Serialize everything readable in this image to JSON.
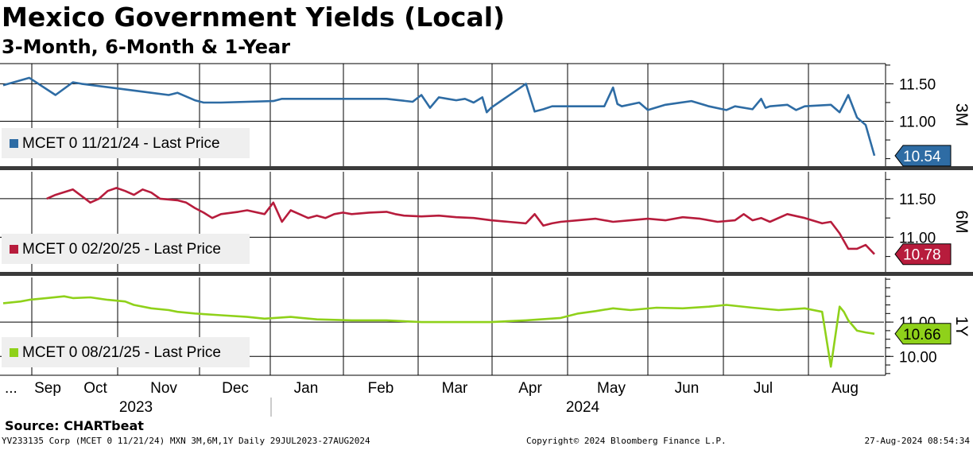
{
  "header": {
    "title": "Mexico Government Yields (Local)",
    "subtitle": "3-Month, 6-Month & 1-Year"
  },
  "footer": {
    "source": "Source: CHARTbeat",
    "left": "YV233135 Corp (MCET 0 11/21/24) MXN 3M,6M,1Y  Daily 29JUL2023-27AUG2024",
    "middle": "Copyright© 2024 Bloomberg Finance L.P.",
    "right": "27-Aug-2024 08:54:34"
  },
  "colors": {
    "three_month": "#2e6ca4",
    "six_month": "#b71c3c",
    "one_year": "#8fd11a",
    "grid": "#000000",
    "separator": "#3a3a3a"
  },
  "chart_data": {
    "type": "line",
    "x_axis": {
      "leading_label": "...",
      "month_labels": [
        "Sep",
        "Oct",
        "Nov",
        "Dec",
        "Jan",
        "Feb",
        "Mar",
        "Apr",
        "May",
        "Jun",
        "Jul",
        "Aug"
      ],
      "year_labels": [
        "2023",
        "2024"
      ]
    },
    "panels": [
      {
        "id": "3M",
        "axis_title": "3M",
        "series_name": "MCET 0 11/21/24 - Last Price",
        "last_value": 10.54,
        "last_label": "10.54",
        "y_range": [
          10.4,
          11.77
        ],
        "y_ticks": [
          11.0,
          11.5
        ],
        "y_tick_labels": [
          "11.00",
          "11.50"
        ],
        "t": [
          0,
          0.03,
          0.06,
          0.08,
          0.09,
          0.13,
          0.17,
          0.19,
          0.2,
          0.22,
          0.23,
          0.25,
          0.31,
          0.32,
          0.43,
          0.44,
          0.47,
          0.48,
          0.49,
          0.5,
          0.51,
          0.52,
          0.53,
          0.54,
          0.55,
          0.555,
          0.56,
          0.565,
          0.57,
          0.6,
          0.61,
          0.62,
          0.63,
          0.66,
          0.69,
          0.7,
          0.705,
          0.71,
          0.73,
          0.74,
          0.76,
          0.79,
          0.81,
          0.83,
          0.84,
          0.86,
          0.87,
          0.875,
          0.88,
          0.9,
          0.91,
          0.92,
          0.95,
          0.96,
          0.97,
          0.98,
          0.99,
          1.0
        ],
        "values": [
          11.48,
          11.58,
          11.35,
          11.52,
          11.5,
          11.44,
          11.38,
          11.35,
          11.38,
          11.28,
          11.25,
          11.25,
          11.27,
          11.3,
          11.3,
          11.3,
          11.26,
          11.35,
          11.18,
          11.32,
          11.3,
          11.28,
          11.3,
          11.25,
          11.32,
          11.12,
          11.18,
          11.22,
          11.26,
          11.5,
          11.13,
          11.16,
          11.2,
          11.2,
          11.2,
          11.45,
          11.23,
          11.2,
          11.25,
          11.15,
          11.22,
          11.27,
          11.2,
          11.15,
          11.2,
          11.16,
          11.3,
          11.18,
          11.2,
          11.22,
          11.15,
          11.2,
          11.22,
          11.12,
          11.35,
          11.05,
          10.95,
          10.54
        ]
      },
      {
        "id": "6M",
        "axis_title": "6M",
        "series_name": "MCET 0 02/20/25 - Last Price",
        "last_value": 10.78,
        "last_label": "10.78",
        "y_range": [
          10.55,
          11.85
        ],
        "y_ticks": [
          11.0,
          11.5
        ],
        "y_tick_labels": [
          "11.00",
          "11.50"
        ],
        "t": [
          0.05,
          0.06,
          0.08,
          0.1,
          0.11,
          0.12,
          0.13,
          0.14,
          0.15,
          0.16,
          0.17,
          0.18,
          0.2,
          0.21,
          0.22,
          0.23,
          0.24,
          0.25,
          0.27,
          0.28,
          0.3,
          0.31,
          0.32,
          0.33,
          0.34,
          0.35,
          0.36,
          0.37,
          0.38,
          0.39,
          0.4,
          0.42,
          0.44,
          0.45,
          0.46,
          0.48,
          0.5,
          0.52,
          0.54,
          0.56,
          0.58,
          0.6,
          0.61,
          0.62,
          0.63,
          0.64,
          0.66,
          0.68,
          0.7,
          0.72,
          0.74,
          0.76,
          0.78,
          0.8,
          0.82,
          0.84,
          0.85,
          0.86,
          0.87,
          0.88,
          0.9,
          0.92,
          0.94,
          0.95,
          0.96,
          0.97,
          0.98,
          0.99,
          1.0
        ],
        "values": [
          11.5,
          11.55,
          11.62,
          11.45,
          11.5,
          11.6,
          11.64,
          11.6,
          11.55,
          11.62,
          11.58,
          11.5,
          11.48,
          11.45,
          11.38,
          11.32,
          11.25,
          11.3,
          11.33,
          11.35,
          11.3,
          11.45,
          11.2,
          11.35,
          11.3,
          11.25,
          11.28,
          11.25,
          11.3,
          11.32,
          11.3,
          11.32,
          11.33,
          11.3,
          11.28,
          11.27,
          11.28,
          11.26,
          11.25,
          11.22,
          11.2,
          11.18,
          11.3,
          11.15,
          11.18,
          11.2,
          11.22,
          11.24,
          11.2,
          11.22,
          11.24,
          11.22,
          11.26,
          11.24,
          11.2,
          11.22,
          11.3,
          11.22,
          11.25,
          11.2,
          11.3,
          11.25,
          11.18,
          11.2,
          11.05,
          10.85,
          10.85,
          10.9,
          10.78
        ]
      },
      {
        "id": "1Y",
        "axis_title": "1Y",
        "series_name": "MCET 0 08/21/25 - Last Price",
        "last_value": 10.66,
        "last_label": "10.66",
        "y_range": [
          9.45,
          12.3
        ],
        "y_ticks": [
          10.0,
          11.0
        ],
        "y_tick_labels": [
          "10.00",
          "11.00"
        ],
        "t": [
          0.0,
          0.02,
          0.03,
          0.05,
          0.07,
          0.08,
          0.1,
          0.12,
          0.14,
          0.15,
          0.17,
          0.19,
          0.2,
          0.22,
          0.25,
          0.28,
          0.3,
          0.33,
          0.36,
          0.4,
          0.44,
          0.48,
          0.52,
          0.56,
          0.6,
          0.64,
          0.66,
          0.68,
          0.7,
          0.72,
          0.75,
          0.78,
          0.81,
          0.83,
          0.86,
          0.89,
          0.92,
          0.94,
          0.95,
          0.96,
          0.965,
          0.97,
          0.98,
          0.99,
          1.0
        ],
        "values": [
          11.55,
          11.6,
          11.65,
          11.7,
          11.75,
          11.7,
          11.72,
          11.65,
          11.6,
          11.5,
          11.4,
          11.35,
          11.3,
          11.25,
          11.2,
          11.15,
          11.1,
          11.15,
          11.08,
          11.05,
          11.05,
          11.0,
          11.0,
          11.0,
          11.05,
          11.12,
          11.25,
          11.32,
          11.4,
          11.35,
          11.42,
          11.4,
          11.45,
          11.5,
          11.42,
          11.35,
          11.4,
          11.3,
          9.7,
          11.45,
          11.3,
          11.05,
          10.75,
          10.7,
          10.66
        ]
      }
    ]
  }
}
